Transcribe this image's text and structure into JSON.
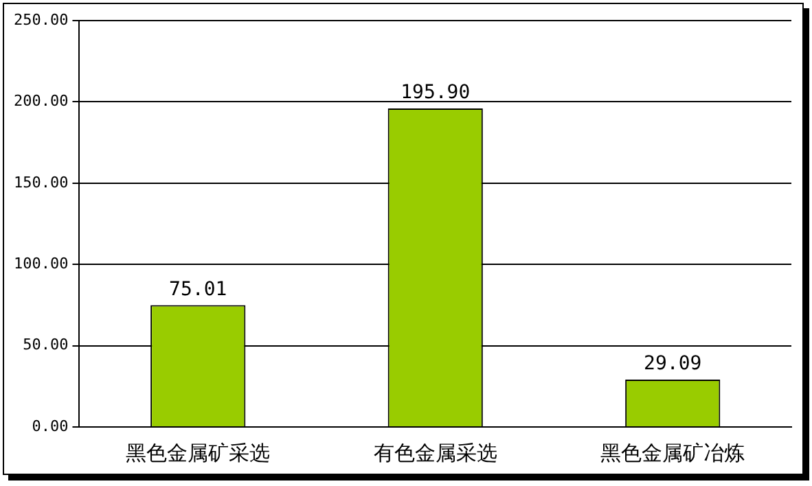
{
  "chart_data": {
    "type": "bar",
    "categories": [
      "黑色金属矿采选",
      "有色金属采选",
      "黑色金属矿冶炼"
    ],
    "values": [
      75.01,
      195.9,
      29.09
    ],
    "value_labels": [
      "75.01",
      "195.90",
      "29.09"
    ],
    "color": "#99cc00",
    "ylim": [
      0,
      250
    ],
    "yticks": [
      {
        "value": 0,
        "label": "0.00"
      },
      {
        "value": 50,
        "label": "50.00"
      },
      {
        "value": 100,
        "label": "100.00"
      },
      {
        "value": 150,
        "label": "150.00"
      },
      {
        "value": 200,
        "label": "200.00"
      },
      {
        "value": 250,
        "label": "250.00"
      }
    ],
    "grid": "y",
    "legend": false
  }
}
